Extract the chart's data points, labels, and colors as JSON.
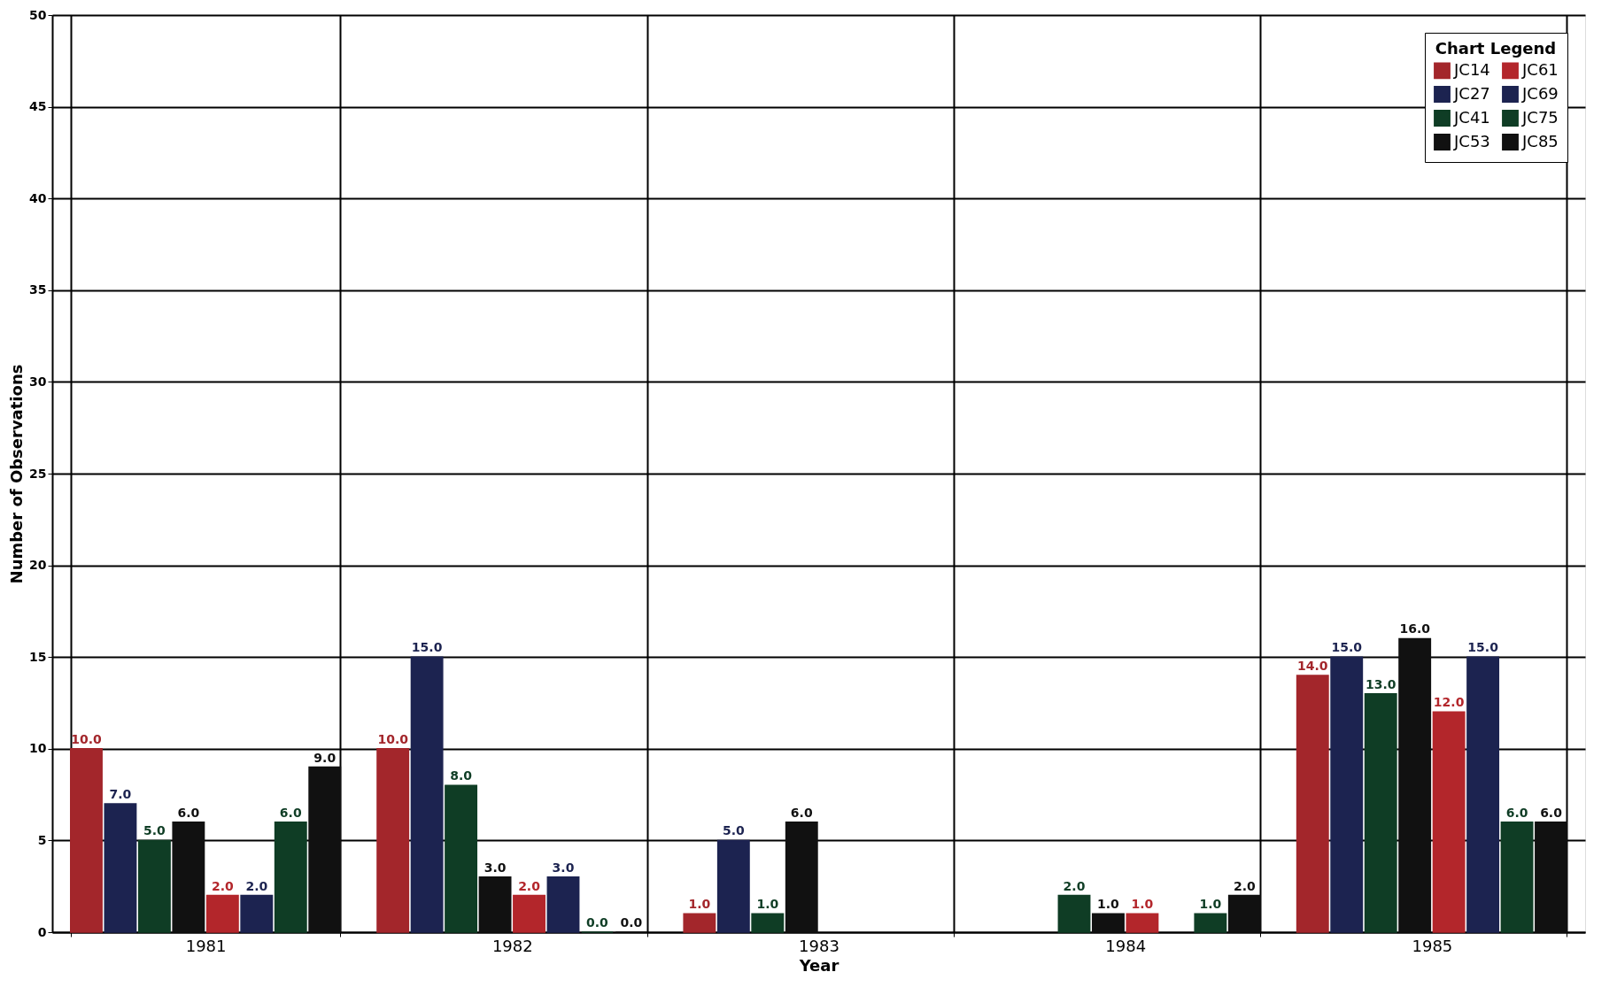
{
  "chart_data": {
    "type": "bar",
    "xlabel": "Year",
    "ylabel": "Number of Observations",
    "legend_title": "Chart Legend",
    "categories": [
      "1981",
      "1982",
      "1983",
      "1984",
      "1985"
    ],
    "series": [
      {
        "name": "JC14",
        "color": "#a3262b",
        "values": [
          10,
          10,
          1,
          null,
          14
        ],
        "value_labels": [
          "10.0",
          "10.0",
          "1.0",
          null,
          "14.0"
        ]
      },
      {
        "name": "JC27",
        "color": "#1c2350",
        "values": [
          7,
          15,
          5,
          null,
          15
        ],
        "value_labels": [
          "7.0",
          "15.0",
          "5.0",
          null,
          "15.0"
        ]
      },
      {
        "name": "JC41",
        "color": "#0f3d25",
        "values": [
          5,
          8,
          1,
          2,
          13
        ],
        "value_labels": [
          "5.0",
          "8.0",
          "1.0",
          "2.0",
          "13.0"
        ]
      },
      {
        "name": "JC53",
        "color": "#111111",
        "values": [
          6,
          3,
          6,
          1,
          16
        ],
        "value_labels": [
          "6.0",
          "3.0",
          "6.0",
          "1.0",
          "16.0"
        ]
      },
      {
        "name": "JC61",
        "color": "#b3262b",
        "values": [
          2,
          2,
          null,
          1,
          12
        ],
        "value_labels": [
          "2.0",
          "2.0",
          null,
          "1.0",
          "12.0"
        ]
      },
      {
        "name": "JC69",
        "color": "#1c2350",
        "values": [
          2,
          3,
          null,
          null,
          15
        ],
        "value_labels": [
          "2.0",
          "3.0",
          null,
          null,
          "15.0"
        ]
      },
      {
        "name": "JC75",
        "color": "#0f3d25",
        "values": [
          6,
          0,
          null,
          1,
          6
        ],
        "value_labels": [
          "6.0",
          "0.0",
          null,
          "1.0",
          "6.0"
        ]
      },
      {
        "name": "JC85",
        "color": "#111111",
        "values": [
          9,
          0,
          null,
          2,
          6
        ],
        "value_labels": [
          "9.0",
          "0.0",
          null,
          "2.0",
          "6.0"
        ]
      }
    ],
    "ylim": [
      0,
      50
    ],
    "yticks": [
      0,
      5,
      10,
      15,
      20,
      25,
      30,
      35,
      40,
      45,
      50
    ],
    "grid": true,
    "legend": "top right"
  }
}
